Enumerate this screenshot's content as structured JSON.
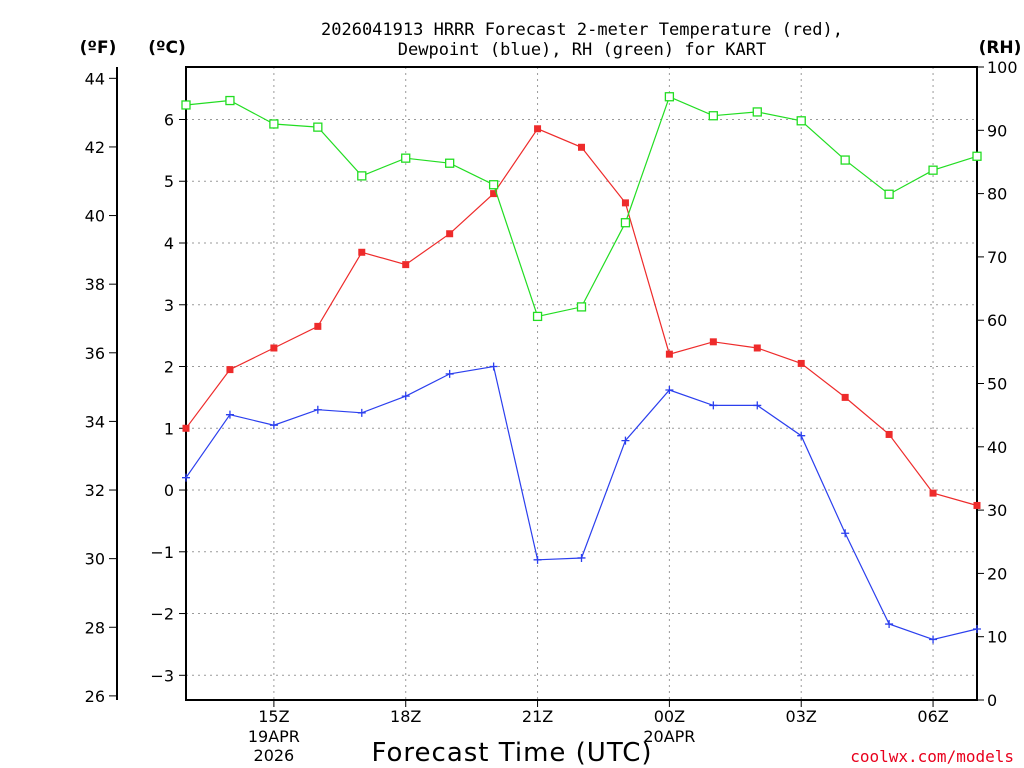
{
  "chart_data": {
    "type": "line",
    "title_line1": "2026041913 HRRR Forecast 2-meter Temperature (red),",
    "title_line2": "Dewpoint (blue), RH (green) for KART",
    "xlabel": "Forecast Time (UTC)",
    "credit": "coolwx.com/models",
    "unit_f": "(ºF)",
    "unit_c": "(ºC)",
    "unit_rh": "(RH)",
    "x_hours": [
      13,
      14,
      15,
      16,
      17,
      18,
      19,
      20,
      21,
      22,
      23,
      24,
      25,
      26,
      27,
      28,
      29,
      30,
      31
    ],
    "xlim": [
      13,
      31
    ],
    "x_ticks": [
      {
        "hour": 15,
        "label": "15Z",
        "sub1": "19APR",
        "sub2": "2026"
      },
      {
        "hour": 18,
        "label": "18Z",
        "sub1": "",
        "sub2": ""
      },
      {
        "hour": 21,
        "label": "21Z",
        "sub1": "",
        "sub2": ""
      },
      {
        "hour": 24,
        "label": "00Z",
        "sub1": "20APR",
        "sub2": ""
      },
      {
        "hour": 27,
        "label": "03Z",
        "sub1": "",
        "sub2": ""
      },
      {
        "hour": 30,
        "label": "06Z",
        "sub1": "",
        "sub2": ""
      }
    ],
    "ylim_c": [
      -3.4,
      6.85
    ],
    "y_ticks_c": [
      "6",
      "5",
      "4",
      "3",
      "2",
      "1",
      "0",
      "−1",
      "−2",
      "−3"
    ],
    "y_ticks_c_values": [
      6,
      5,
      4,
      3,
      2,
      1,
      0,
      -1,
      -2,
      -3
    ],
    "y_ticks_f": [
      "44",
      "42",
      "40",
      "38",
      "36",
      "34",
      "32",
      "30",
      "28",
      "26"
    ],
    "y_ticks_f_values": [
      44,
      42,
      40,
      38,
      36,
      34,
      32,
      30,
      28,
      26
    ],
    "ylim_rh": [
      0,
      100
    ],
    "y_ticks_rh": [
      "100",
      "90",
      "80",
      "70",
      "60",
      "50",
      "40",
      "30",
      "20",
      "10",
      "0"
    ],
    "y_ticks_rh_values": [
      100,
      90,
      80,
      70,
      60,
      50,
      40,
      30,
      20,
      10,
      0
    ],
    "grid": true,
    "series": [
      {
        "name": "Temperature",
        "axis": "c",
        "color": "#ee2b2b",
        "marker": "filled-square",
        "values": [
          1.0,
          1.95,
          2.3,
          2.65,
          3.85,
          3.65,
          4.15,
          4.8,
          5.85,
          5.55,
          4.65,
          2.2,
          2.4,
          2.3,
          2.05,
          1.5,
          0.9,
          -0.05,
          -0.25
        ]
      },
      {
        "name": "Dewpoint",
        "axis": "c",
        "color": "#2b3fee",
        "marker": "plus",
        "values": [
          0.2,
          1.22,
          1.05,
          1.3,
          1.25,
          1.52,
          1.88,
          2.0,
          -1.13,
          -1.1,
          0.8,
          1.62,
          1.37,
          1.37,
          0.88,
          -0.7,
          -2.17,
          -2.42,
          -2.25
        ]
      },
      {
        "name": "RH",
        "axis": "rh",
        "color": "#22dd22",
        "marker": "open-square",
        "values": [
          94,
          94.7,
          91,
          90.5,
          82.8,
          85.6,
          84.8,
          81.4,
          60.6,
          62.1,
          75.4,
          95.3,
          92.3,
          92.9,
          91.5,
          85.3,
          79.9,
          83.7,
          85.9
        ]
      }
    ]
  }
}
